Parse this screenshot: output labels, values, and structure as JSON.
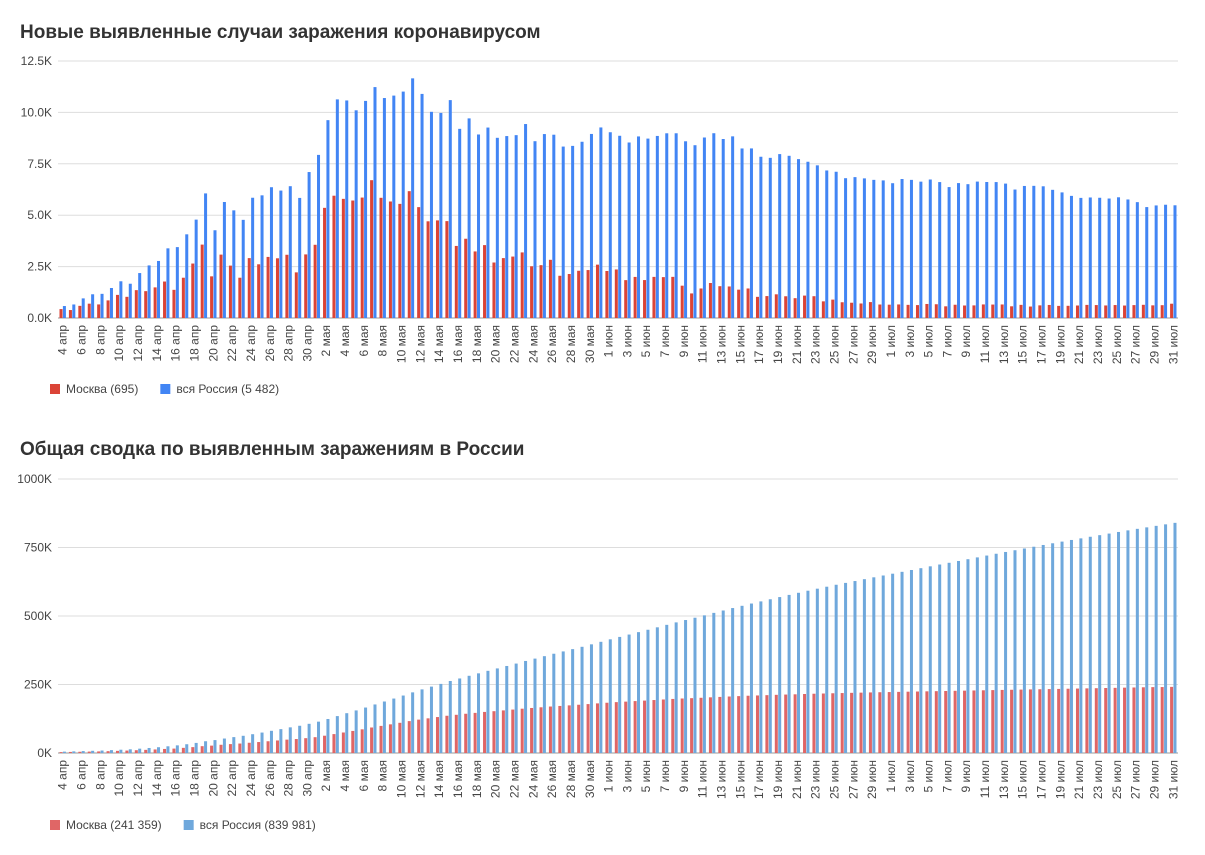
{
  "chart_data": [
    {
      "type": "bar",
      "title": "Новые выявленные случаи заражения коронавирусом",
      "categories": [
        "4 апр",
        null,
        "6 апр",
        null,
        "8 апр",
        null,
        "10 апр",
        null,
        "12 апр",
        null,
        "14 апр",
        null,
        "16 апр",
        null,
        "18 апр",
        null,
        "20 апр",
        null,
        "22 апр",
        null,
        "24 апр",
        null,
        "26 апр",
        null,
        "28 апр",
        null,
        "30 апр",
        null,
        "2 мая",
        null,
        "4 мая",
        null,
        "6 мая",
        null,
        "8 мая",
        null,
        "10 мая",
        null,
        "12 мая",
        null,
        "14 мая",
        null,
        "16 мая",
        null,
        "18 мая",
        null,
        "20 мая",
        null,
        "22 мая",
        null,
        "24 мая",
        null,
        "26 мая",
        null,
        "28 мая",
        null,
        "30 мая",
        null,
        "1 июн",
        null,
        "3 июн",
        null,
        "5 июн",
        null,
        "7 июн",
        null,
        "9 июн",
        null,
        "11 июн",
        null,
        "13 июн",
        null,
        "15 июн",
        null,
        "17 июн",
        null,
        "19 июн",
        null,
        "21 июн",
        null,
        "23 июн",
        null,
        "25 июн",
        null,
        "27 июн",
        null,
        "29 июн",
        null,
        "1 июл",
        null,
        "3 июл",
        null,
        "5 июл",
        null,
        "7 июл",
        null,
        "9 июл",
        null,
        "11 июл",
        null,
        "13 июл",
        null,
        "15 июл",
        null,
        "17 июл",
        null,
        "19 июл",
        null,
        "21 июл",
        null,
        "23 июл",
        null,
        "25 июл",
        null,
        "27 июл",
        null,
        "29 июл",
        null,
        "31 июл"
      ],
      "series": [
        {
          "name": "Москва (695)",
          "color": "#db4437",
          "values": [
            434,
            387,
            591,
            697,
            660,
            857,
            1124,
            1030,
            1355,
            1306,
            1489,
            1774,
            1370,
            1959,
            2649,
            3570,
            2026,
            3083,
            2548,
            1959,
            2913,
            2612,
            2971,
            2904,
            3075,
            2220,
            3093,
            3561,
            5358,
            5948,
            5795,
            5714,
            5858,
            6703,
            5846,
            5667,
            5551,
            6169,
            5392,
            4703,
            4748,
            4712,
            3505,
            3855,
            3238,
            3545,
            2699,
            2913,
            2988,
            3190,
            2516,
            2570,
            2830,
            2054,
            2140,
            2297,
            2332,
            2595,
            2286,
            2361,
            1842,
            1998,
            1845,
            2000,
            1988,
            2001,
            1572,
            1195,
            1436,
            1702,
            1547,
            1534,
            1378,
            1436,
            1029,
            1066,
            1152,
            1057,
            964,
            1090,
            1060,
            810,
            894,
            766,
            743,
            706,
            774,
            656,
            648,
            659,
            639,
            628,
            682,
            669,
            568,
            645,
            608,
            613,
            660,
            654,
            658,
            569,
            639,
            557,
            615,
            634,
            589,
            593,
            608,
            637,
            629,
            610,
            630,
            606,
            627,
            642,
            615,
            623,
            695
          ]
        },
        {
          "name": "вся Россия (5 482)",
          "color": "#4285f4",
          "values": [
            582,
            658,
            954,
            1154,
            1175,
            1459,
            1786,
            1667,
            2186,
            2558,
            2774,
            3388,
            3448,
            4070,
            4785,
            6060,
            4268,
            5642,
            5236,
            4774,
            5849,
            5966,
            6361,
            6198,
            6411,
            5841,
            7099,
            7933,
            9623,
            10633,
            10581,
            10102,
            10559,
            11231,
            10699,
            10817,
            11012,
            11656,
            10899,
            10028,
            9974,
            10598,
            9200,
            9709,
            8926,
            9263,
            8764,
            8849,
            8894,
            9434,
            8599,
            8946,
            8915,
            8338,
            8371,
            8572,
            8952,
            9268,
            9035,
            8863,
            8536,
            8831,
            8726,
            8855,
            8984,
            8985,
            8595,
            8404,
            8779,
            8987,
            8706,
            8835,
            8246,
            8248,
            7843,
            7790,
            7972,
            7889,
            7728,
            7600,
            7425,
            7176,
            7113,
            6800,
            6852,
            6791,
            6719,
            6693,
            6556,
            6760,
            6718,
            6632,
            6736,
            6611,
            6368,
            6562,
            6509,
            6635,
            6615,
            6611,
            6537,
            6248,
            6422,
            6428,
            6406,
            6234,
            6109,
            5940,
            5842,
            5862,
            5848,
            5811,
            5871,
            5765,
            5635,
            5395,
            5475,
            5509,
            5482
          ]
        }
      ],
      "ylim": [
        0,
        12500
      ],
      "yticks": [
        {
          "value": 0,
          "label": "0.0K"
        },
        {
          "value": 2500,
          "label": "2.5K"
        },
        {
          "value": 5000,
          "label": "5.0K"
        },
        {
          "value": 7500,
          "label": "7.5K"
        },
        {
          "value": 10000,
          "label": "10.0K"
        },
        {
          "value": 12500,
          "label": "12.5K"
        }
      ],
      "grid": true,
      "legend": "bottom-left"
    },
    {
      "type": "bar",
      "title": "Общая сводка по выявленным заражениям в России",
      "categories": [
        "4 апр",
        null,
        "6 апр",
        null,
        "8 апр",
        null,
        "10 апр",
        null,
        "12 апр",
        null,
        "14 апр",
        null,
        "16 апр",
        null,
        "18 апр",
        null,
        "20 апр",
        null,
        "22 апр",
        null,
        "24 апр",
        null,
        "26 апр",
        null,
        "28 апр",
        null,
        "30 апр",
        null,
        "2 мая",
        null,
        "4 мая",
        null,
        "6 мая",
        null,
        "8 мая",
        null,
        "10 мая",
        null,
        "12 мая",
        null,
        "14 мая",
        null,
        "16 мая",
        null,
        "18 мая",
        null,
        "20 мая",
        null,
        "22 мая",
        null,
        "24 мая",
        null,
        "26 мая",
        null,
        "28 мая",
        null,
        "30 мая",
        null,
        "1 июн",
        null,
        "3 июн",
        null,
        "5 июн",
        null,
        "7 июн",
        null,
        "9 июн",
        null,
        "11 июн",
        null,
        "13 июн",
        null,
        "15 июн",
        null,
        "17 июн",
        null,
        "19 июн",
        null,
        "21 июн",
        null,
        "23 июн",
        null,
        "25 июн",
        null,
        "27 июн",
        null,
        "29 июн",
        null,
        "1 июл",
        null,
        "3 июл",
        null,
        "5 июл",
        null,
        "7 июл",
        null,
        "9 июл",
        null,
        "11 июл",
        null,
        "13 июл",
        null,
        "15 июл",
        null,
        "17 июл",
        null,
        "19 июл",
        null,
        "21 июл",
        null,
        "23 июл",
        null,
        "25 июл",
        null,
        "27 июл",
        null,
        "29 июл",
        null,
        "31 июл"
      ],
      "series": [
        {
          "name": "Москва (241 359)",
          "color": "#e06666",
          "values": [
            3300,
            3900,
            4500,
            5200,
            5800,
            6700,
            7800,
            8900,
            10200,
            11500,
            13000,
            14800,
            16100,
            18800,
            21400,
            24900,
            26900,
            30000,
            32500,
            34500,
            37400,
            40000,
            42900,
            45800,
            48800,
            51000,
            54100,
            57700,
            63100,
            69000,
            74800,
            80500,
            86400,
            93100,
            98900,
            104600,
            110200,
            116400,
            121800,
            126500,
            131200,
            135900,
            139400,
            143200,
            146400,
            149900,
            152600,
            155500,
            158500,
            161700,
            164300,
            166800,
            169600,
            171700,
            173800,
            176100,
            178500,
            181100,
            183400,
            185700,
            187500,
            189500,
            191300,
            193300,
            195300,
            197300,
            198900,
            200100,
            201500,
            203200,
            204700,
            206200,
            207600,
            209000,
            210000,
            211100,
            212300,
            213300,
            214200,
            215300,
            216300,
            217100,
            218000,
            218800,
            219600,
            220300,
            221100,
            221800,
            222400,
            223100,
            223800,
            224400,
            225100,
            225700,
            226300,
            227000,
            227600,
            228300,
            228900,
            229600,
            230200,
            230800,
            231400,
            232100,
            232700,
            233300,
            233900,
            234600,
            235200,
            235900,
            236500,
            237200,
            237800,
            238500,
            239100,
            239800,
            240400,
            240700,
            241359
          ]
        },
        {
          "name": "вся Россия (839 981)",
          "color": "#6fa8dc",
          "values": [
            5000,
            6000,
            7000,
            8000,
            9000,
            10500,
            12000,
            13500,
            15800,
            18300,
            21100,
            24500,
            27900,
            32000,
            36800,
            42900,
            47100,
            52800,
            58000,
            62800,
            68600,
            74600,
            81000,
            87100,
            93600,
            99400,
            106500,
            114400,
            124100,
            134700,
            145300,
            155400,
            165900,
            177200,
            187900,
            198700,
            209700,
            221300,
            232200,
            242300,
            252200,
            262800,
            272000,
            281800,
            290700,
            299900,
            308700,
            317600,
            326400,
            335900,
            344500,
            353400,
            362300,
            370700,
            379100,
            387600,
            396600,
            405800,
            414900,
            423700,
            432300,
            441100,
            449800,
            458700,
            467700,
            476700,
            485300,
            493700,
            502400,
            511400,
            520100,
            529000,
            537200,
            545500,
            553300,
            561100,
            569100,
            577000,
            584700,
            592300,
            599700,
            606900,
            614000,
            620800,
            627600,
            634400,
            641200,
            647800,
            654400,
            661200,
            667900,
            674500,
            681300,
            687900,
            694200,
            700800,
            707300,
            713900,
            720600,
            727200,
            733700,
            740000,
            746400,
            752800,
            759200,
            765400,
            771500,
            777500,
            783300,
            789200,
            795000,
            800800,
            806700,
            812500,
            818100,
            823500,
            829000,
            834500,
            839981
          ]
        }
      ],
      "ylim": [
        0,
        1000000
      ],
      "yticks": [
        {
          "value": 0,
          "label": "0K"
        },
        {
          "value": 250000,
          "label": "250K"
        },
        {
          "value": 500000,
          "label": "500K"
        },
        {
          "value": 750000,
          "label": "750K"
        },
        {
          "value": 1000000,
          "label": "1000K"
        }
      ],
      "grid": true,
      "legend": "bottom-left"
    }
  ]
}
